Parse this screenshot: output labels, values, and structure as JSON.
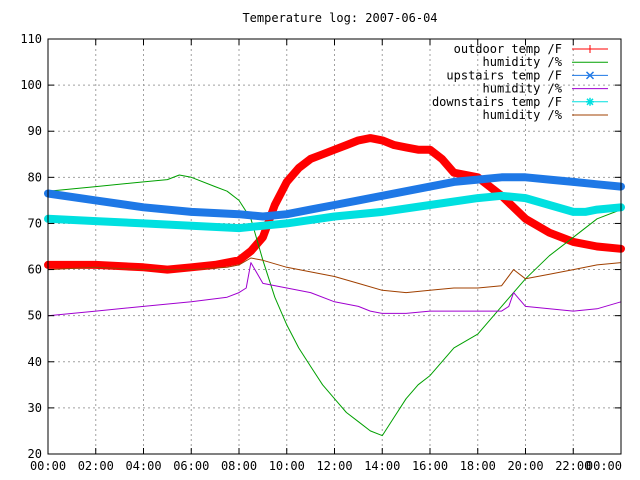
{
  "chart_data": {
    "type": "line",
    "title": "Temperature log: 2007-06-04",
    "xlabel": "",
    "ylabel": "",
    "ylim": [
      20,
      110
    ],
    "xlim": [
      0,
      24
    ],
    "x_ticks": [
      "00:00",
      "02:00",
      "04:00",
      "06:00",
      "08:00",
      "10:00",
      "12:00",
      "14:00",
      "16:00",
      "18:00",
      "20:00",
      "22:00",
      "00:00"
    ],
    "y_ticks": [
      20,
      30,
      40,
      50,
      60,
      70,
      80,
      90,
      100,
      110
    ],
    "grid": true,
    "legend_position": "top-right",
    "series": [
      {
        "name": "outdoor temp /F",
        "color": "#ff0000",
        "marker": "plus",
        "x": [
          0,
          2,
          4,
          5,
          6,
          7,
          8,
          8.5,
          9,
          9.5,
          10,
          10.5,
          11,
          11.5,
          12,
          12.5,
          13,
          13.5,
          14,
          14.5,
          15,
          15.5,
          16,
          16.5,
          17,
          18,
          19,
          20,
          21,
          22,
          23,
          24
        ],
        "y": [
          61,
          61,
          60.5,
          60,
          60.5,
          61,
          62,
          64,
          67,
          74,
          79,
          82,
          84,
          85,
          86,
          87,
          88,
          88.5,
          88,
          87,
          86.5,
          86,
          86,
          84,
          81,
          80,
          76,
          71,
          68,
          66,
          65,
          64.5
        ]
      },
      {
        "name": "humidity /%",
        "color": "#00a000",
        "marker": "none",
        "x": [
          0,
          2,
          4,
          5,
          5.5,
          6,
          7,
          7.5,
          8,
          8.5,
          9,
          9.5,
          10,
          10.5,
          11,
          11.5,
          12,
          12.5,
          13,
          13.5,
          14,
          14.5,
          15,
          15.5,
          16,
          16.5,
          17,
          18,
          19,
          20,
          21,
          22,
          23,
          24
        ],
        "y": [
          77,
          78,
          79,
          79.5,
          80.5,
          80,
          78,
          77,
          75,
          71,
          62,
          54,
          48,
          43,
          39,
          35,
          32,
          29,
          27,
          25,
          24,
          28,
          32,
          35,
          37,
          40,
          43,
          46,
          52,
          58,
          63,
          67,
          71,
          73
        ]
      },
      {
        "name": "upstairs temp /F",
        "color": "#1e78e6",
        "marker": "x",
        "x": [
          0,
          2,
          4,
          6,
          8,
          9,
          10,
          11,
          12,
          13,
          14,
          15,
          16,
          17,
          18,
          19,
          20,
          21,
          22,
          23,
          24
        ],
        "y": [
          76.5,
          75,
          73.5,
          72.5,
          72,
          71.5,
          72,
          73,
          74,
          75,
          76,
          77,
          78,
          79,
          79.5,
          80,
          80,
          79.5,
          79,
          78.5,
          78
        ]
      },
      {
        "name": "humidity /%",
        "color": "#a000d0",
        "marker": "none",
        "x": [
          0,
          2,
          4,
          6,
          7.5,
          8,
          8.3,
          8.5,
          9,
          10,
          11,
          12,
          13,
          13.5,
          14,
          15,
          16,
          17,
          18,
          19,
          19.3,
          19.5,
          20,
          21,
          22,
          23,
          24
        ],
        "y": [
          50,
          51,
          52,
          53,
          54,
          55,
          56,
          61.5,
          57,
          56,
          55,
          53,
          52,
          51,
          50.5,
          50.5,
          51,
          51,
          51,
          51,
          52,
          55,
          52,
          51.5,
          51,
          51.5,
          53
        ]
      },
      {
        "name": "downstairs temp /F",
        "color": "#00e0e0",
        "marker": "star",
        "x": [
          0,
          2,
          4,
          6,
          8,
          10,
          12,
          14,
          16,
          18,
          19,
          20,
          21,
          22,
          22.5,
          23,
          24
        ],
        "y": [
          71,
          70.5,
          70,
          69.5,
          69,
          70,
          71.5,
          72.5,
          74,
          75.5,
          76,
          75.5,
          74,
          72.5,
          72.5,
          73,
          73.5
        ]
      },
      {
        "name": "humidity /%",
        "color": "#a04000",
        "marker": "none",
        "x": [
          0,
          2,
          4,
          6,
          7.5,
          8,
          8.5,
          9,
          10,
          11,
          12,
          13,
          14,
          15,
          16,
          17,
          18,
          19,
          19.5,
          20,
          21,
          22,
          23,
          24
        ],
        "y": [
          60,
          60.5,
          60,
          60,
          60.5,
          61,
          62.5,
          62,
          60.5,
          59.5,
          58.5,
          57,
          55.5,
          55,
          55.5,
          56,
          56,
          56.5,
          60,
          58,
          59,
          60,
          61,
          61.5
        ]
      }
    ]
  }
}
